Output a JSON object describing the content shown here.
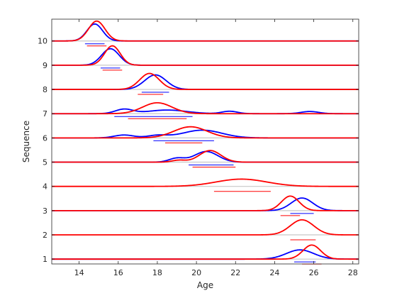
{
  "chart_data": {
    "type": "line",
    "xlabel": "Age",
    "ylabel": "Sequence",
    "xlim": [
      12.6,
      28.3
    ],
    "ylim": [
      0.8,
      10.9
    ],
    "x_ticks": [
      14,
      16,
      18,
      20,
      22,
      24,
      26,
      28
    ],
    "y_ticks": [
      1,
      2,
      3,
      4,
      5,
      6,
      7,
      8,
      9,
      10
    ],
    "grid": "horizontal-at-ticks",
    "colors": {
      "series_a": "#0000ff",
      "series_b": "#ff0000",
      "axis": "#262626",
      "baseline": "#c8c8c8"
    },
    "density_scale": 1.0,
    "sequences": [
      {
        "seq": 1,
        "blue": {
          "peaks": [
            [
              25.3,
              0.7,
              0.38
            ]
          ],
          "range": [
            25.0,
            26.1
          ]
        },
        "red": {
          "peaks": [
            [
              25.9,
              0.45,
              0.58
            ]
          ],
          "range": [
            25.4,
            26.4
          ]
        }
      },
      {
        "seq": 2,
        "blue": null,
        "red": {
          "peaks": [
            [
              25.4,
              0.6,
              0.62
            ]
          ],
          "range": [
            24.8,
            26.1
          ]
        }
      },
      {
        "seq": 3,
        "blue": {
          "peaks": [
            [
              25.4,
              0.55,
              0.52
            ]
          ],
          "range": [
            24.8,
            26.0
          ]
        },
        "red": {
          "peaks": [
            [
              24.8,
              0.45,
              0.6
            ]
          ],
          "range": [
            24.3,
            25.3
          ]
        }
      },
      {
        "seq": 4,
        "blue": null,
        "red": {
          "peaks": [
            [
              22.3,
              1.3,
              0.3
            ]
          ],
          "range": [
            20.9,
            23.8
          ]
        }
      },
      {
        "seq": 5,
        "blue": {
          "peaks": [
            [
              20.5,
              0.6,
              0.44
            ],
            [
              19.0,
              0.4,
              0.16
            ]
          ],
          "range": [
            19.6,
            21.9
          ]
        },
        "red": {
          "peaks": [
            [
              20.7,
              0.55,
              0.48
            ],
            [
              19.1,
              0.35,
              0.08
            ]
          ],
          "range": [
            19.8,
            22.0
          ]
        }
      },
      {
        "seq": 6,
        "blue": {
          "peaks": [
            [
              20.3,
              1.0,
              0.32
            ],
            [
              16.3,
              0.5,
              0.12
            ],
            [
              18.0,
              0.5,
              0.1
            ]
          ],
          "range": [
            17.8,
            20.9
          ]
        },
        "red": {
          "peaks": [
            [
              19.7,
              0.85,
              0.46
            ]
          ],
          "range": [
            18.4,
            20.3
          ]
        }
      },
      {
        "seq": 7,
        "blue": {
          "peaks": [
            [
              16.3,
              0.45,
              0.18
            ],
            [
              18.5,
              1.0,
              0.15
            ],
            [
              21.7,
              0.4,
              0.1
            ],
            [
              25.8,
              0.45,
              0.09
            ]
          ],
          "range": [
            15.8,
            19.8
          ]
        },
        "red": {
          "peaks": [
            [
              18.0,
              0.75,
              0.45
            ]
          ],
          "range": [
            16.5,
            19.5
          ]
        }
      },
      {
        "seq": 8,
        "blue": {
          "peaks": [
            [
              17.9,
              0.55,
              0.6
            ]
          ],
          "range": [
            17.2,
            18.6
          ]
        },
        "red": {
          "peaks": [
            [
              17.6,
              0.5,
              0.66
            ]
          ],
          "range": [
            17.0,
            18.3
          ]
        }
      },
      {
        "seq": 9,
        "blue": {
          "peaks": [
            [
              15.6,
              0.45,
              0.68
            ]
          ],
          "range": [
            15.1,
            16.1
          ]
        },
        "red": {
          "peaks": [
            [
              15.7,
              0.4,
              0.8
            ]
          ],
          "range": [
            15.2,
            16.2
          ]
        }
      },
      {
        "seq": 10,
        "blue": {
          "peaks": [
            [
              14.8,
              0.4,
              0.7
            ]
          ],
          "range": [
            14.3,
            15.3
          ]
        },
        "red": {
          "peaks": [
            [
              14.9,
              0.42,
              0.82
            ]
          ],
          "range": [
            14.4,
            15.4
          ]
        }
      }
    ]
  }
}
